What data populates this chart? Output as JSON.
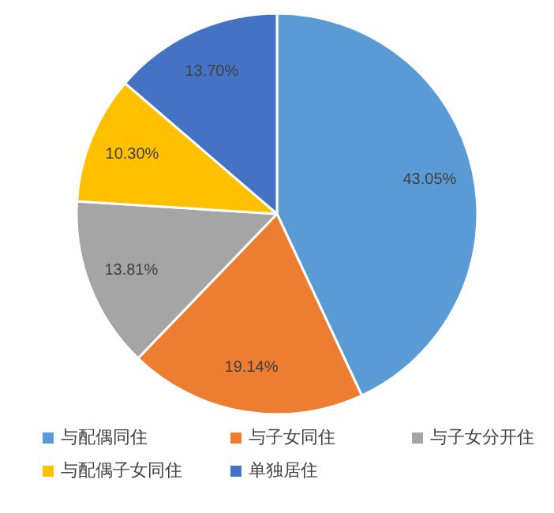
{
  "chart_data": {
    "type": "pie",
    "categories": [
      "与配偶同住",
      "与子女同住",
      "与子女分开住",
      "与配偶子女同住",
      "单独居住"
    ],
    "values": [
      43.05,
      19.14,
      13.81,
      10.3,
      13.7
    ],
    "colors": [
      "#5b9bd5",
      "#ed7d31",
      "#a5a5a5",
      "#ffc000",
      "#4472c4"
    ],
    "value_labels": [
      "43.05%",
      "19.14%",
      "13.81%",
      "10.30%",
      "13.70%"
    ],
    "legend": "bottom"
  }
}
